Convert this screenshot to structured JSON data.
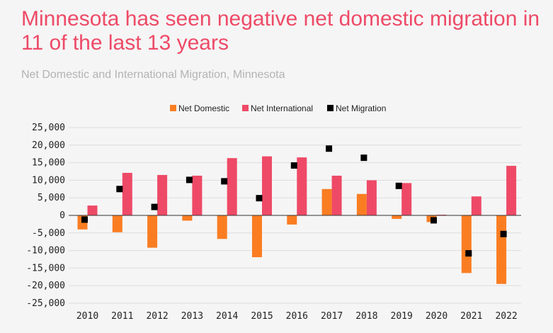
{
  "title": "Minnesota has seen negative net domestic migration in 11 of the last 13 years",
  "subtitle": "Net Domestic and International Migration, Minnesota",
  "colors": {
    "net_domestic": "#fa7d22",
    "net_international": "#ee4a67",
    "net_migration": "#000000",
    "title": "#ee4a67",
    "subtitle": "#b3b3b3",
    "grid": "#dddddd",
    "axis": "#333333",
    "background": "#f5f5f5"
  },
  "chart_data": {
    "type": "bar",
    "title": "",
    "xlabel": "",
    "ylabel": "",
    "legend_position": "top-center",
    "grid": true,
    "ylim": [
      -25000,
      25000
    ],
    "yticks": [
      25000,
      20000,
      15000,
      10000,
      5000,
      0,
      -5000,
      -10000,
      -15000,
      -20000,
      -25000
    ],
    "ytick_labels": [
      "25,000",
      "20,000",
      "15,000",
      "10,000",
      "5,000",
      "0",
      "-5,000",
      "-10,000",
      "-15,000",
      "-20,000",
      "-25,000"
    ],
    "categories": [
      "2010",
      "2011",
      "2012",
      "2013",
      "2014",
      "2015",
      "2016",
      "2017",
      "2018",
      "2019",
      "2020",
      "2021",
      "2022"
    ],
    "series": [
      {
        "name": "Net Domestic",
        "kind": "bar",
        "values": [
          -4000,
          -4800,
          -9200,
          -1500,
          -6700,
          -11900,
          -2600,
          7500,
          6100,
          -1000,
          -1900,
          -16400,
          -19500
        ]
      },
      {
        "name": "Net International",
        "kind": "bar",
        "values": [
          2800,
          12100,
          11500,
          11300,
          16300,
          16800,
          16500,
          11300,
          10000,
          9200,
          200,
          5400,
          14100
        ]
      },
      {
        "name": "Net Migration",
        "kind": "marker",
        "values": [
          -1200,
          7500,
          2400,
          10100,
          9700,
          4900,
          14200,
          19000,
          16400,
          8400,
          -1400,
          -10800,
          -5300
        ]
      }
    ]
  }
}
